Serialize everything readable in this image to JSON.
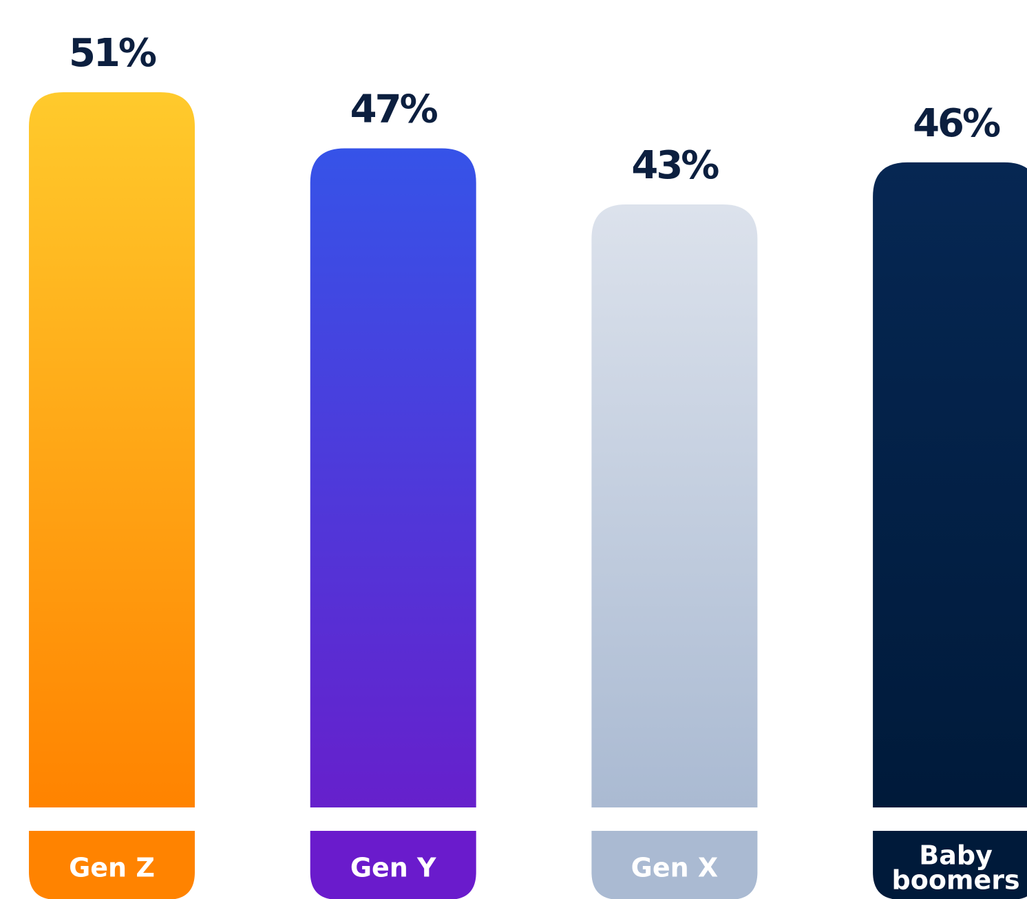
{
  "chart_data": {
    "type": "bar",
    "categories": [
      "Gen Z",
      "Gen Y",
      "Gen X",
      "Baby boomers"
    ],
    "values": [
      51,
      47,
      43,
      46
    ],
    "value_labels": [
      "51%",
      "47%",
      "43%",
      "46%"
    ],
    "category_label_lines": [
      [
        "Gen Z"
      ],
      [
        "Gen Y"
      ],
      [
        "Gen X"
      ],
      [
        "Baby",
        "boomers"
      ]
    ],
    "unit": "%",
    "ylim": [
      0,
      51
    ],
    "grid": false,
    "legend": "none",
    "bar_gradients": [
      [
        "#FFCA2C",
        "#FF8300"
      ],
      [
        "#3653E8",
        "#6620CC"
      ],
      [
        "#DCE2EC",
        "#AABAD2"
      ],
      [
        "#062753",
        "#001A3A"
      ]
    ],
    "tab_colors": [
      "#FF8300",
      "#6A1BCC",
      "#AABAD2",
      "#001A3A"
    ],
    "value_label_color": "#0C1F3F",
    "category_label_color": "#FFFFFF"
  }
}
